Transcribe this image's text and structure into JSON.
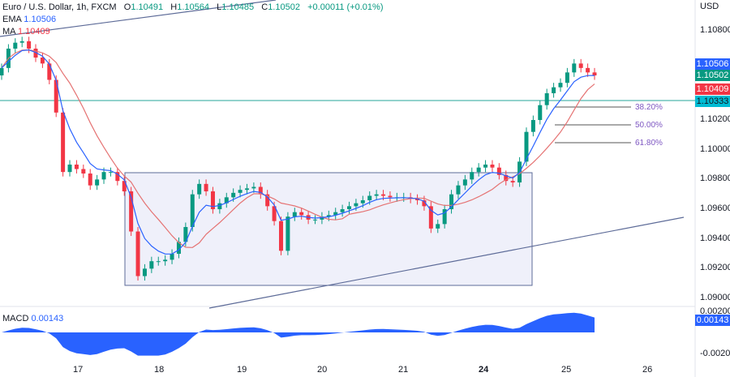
{
  "header": {
    "symbol": "Euro / U.S. Dollar, 1h, FXCM",
    "o_label": "O",
    "o": "1.10491",
    "h_label": "H",
    "h": "1.10564",
    "l_label": "L",
    "l": "1.10485",
    "c_label": "C",
    "c": "1.10502",
    "change": "+0.00011 (+0.01%)",
    "ema_label": "EMA",
    "ema": "1.10506",
    "ma_label": "MA",
    "ma": "1.10409",
    "macd_label": "MACD",
    "macd": "0.00143"
  },
  "price_axis": {
    "currency": "USD",
    "ticks": [
      "1.10800",
      "1.10200",
      "1.10000",
      "1.09800",
      "1.09600",
      "1.09400",
      "1.09200",
      "1.09000"
    ],
    "tags": {
      "ema": "1.10506",
      "close": "1.10502",
      "ma": "1.10409",
      "line": "1.10333"
    }
  },
  "macd_axis": {
    "ticks": [
      "0.00200",
      "-0.00200"
    ],
    "tag": "0.00143"
  },
  "time_axis": [
    "17",
    "18",
    "19",
    "20",
    "21",
    "24",
    "25",
    "26"
  ],
  "fib_levels": [
    "38.20%",
    "50.00%",
    "61.80%"
  ],
  "colors": {
    "up": "#089981",
    "down": "#f23645",
    "ema": "#2962ff",
    "ma": "#e57373",
    "line": "#00bcd4",
    "macd": "#2962ff",
    "box": "#e8eaf8"
  },
  "chart_data": {
    "type": "candlestick",
    "interval": "2-candle-resampled 1h",
    "ylim": [
      1.0895,
      1.1095
    ],
    "close": [
      1.1055,
      1.1068,
      1.1072,
      1.1073,
      1.1068,
      1.1062,
      1.1058,
      1.1047,
      1.1025,
      1.0985,
      1.099,
      1.0987,
      1.0984,
      1.0976,
      1.098,
      1.0985,
      1.0985,
      1.0979,
      1.0972,
      1.0945,
      1.0915,
      1.092,
      1.0925,
      1.0925,
      1.0926,
      1.093,
      1.0938,
      1.0948,
      1.097,
      1.0977,
      1.0972,
      1.096,
      1.0964,
      1.0968,
      1.0971,
      1.0973,
      1.0974,
      1.0975,
      1.097,
      1.0962,
      1.0952,
      1.0932,
      1.0955,
      1.0958,
      1.0956,
      1.0953,
      1.0953,
      1.0955,
      1.0956,
      1.0958,
      1.096,
      1.0962,
      1.0964,
      1.0966,
      1.0969,
      1.097,
      1.0969,
      1.0968,
      1.0968,
      1.0968,
      1.0967,
      1.0966,
      1.0962,
      1.0947,
      1.095,
      1.096,
      1.097,
      1.0976,
      1.098,
      1.0985,
      1.0988,
      1.099,
      1.0988,
      1.0983,
      1.0979,
      1.0978,
      1.0992,
      1.1012,
      1.102,
      1.103,
      1.1038,
      1.1042,
      1.1045,
      1.1052,
      1.1058,
      1.1055,
      1.1052,
      1.105
    ]
  }
}
